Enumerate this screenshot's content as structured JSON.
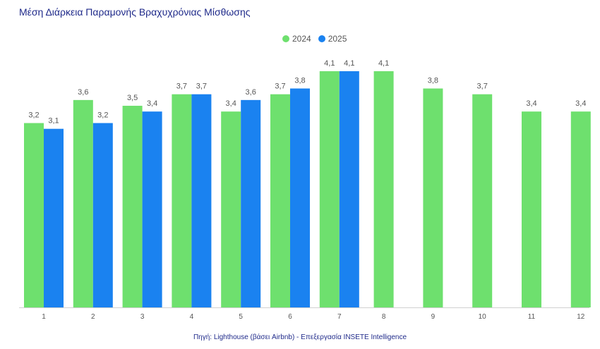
{
  "title": "Μέση Διάρκεια Παραμονής Βραχυχρόνιας Μίσθωσης",
  "source": "Πηγή: Lighthouse (βάσει Airbnb) - Επεξεργασία INSETE Intelligence",
  "colors": {
    "s2024": "#6ee06e",
    "s2025": "#1a82f0"
  },
  "chart_data": {
    "type": "bar",
    "title": "Μέση Διάρκεια Παραμονής Βραχυχρόνιας Μίσθωσης",
    "xlabel": "",
    "ylabel": "",
    "categories": [
      "1",
      "2",
      "3",
      "4",
      "5",
      "6",
      "7",
      "8",
      "9",
      "10",
      "11",
      "12"
    ],
    "series": [
      {
        "name": "2024",
        "values": [
          3.2,
          3.6,
          3.5,
          3.7,
          3.4,
          3.7,
          4.1,
          4.1,
          3.8,
          3.7,
          3.4,
          3.4
        ],
        "labels": [
          "3,2",
          "3,6",
          "3,5",
          "3,7",
          "3,4",
          "3,7",
          "4,1",
          "4,1",
          "3,8",
          "3,7",
          "3,4",
          "3,4"
        ]
      },
      {
        "name": "2025",
        "values": [
          3.1,
          3.2,
          3.4,
          3.7,
          3.6,
          3.8,
          4.1,
          null,
          null,
          null,
          null,
          null
        ],
        "labels": [
          "3,1",
          "3,2",
          "3,4",
          "3,7",
          "3,6",
          "3,8",
          "4,1",
          "",
          "",
          "",
          "",
          ""
        ]
      }
    ],
    "ylim": [
      0,
      4.1
    ],
    "grid": false,
    "legend": "top-center"
  }
}
